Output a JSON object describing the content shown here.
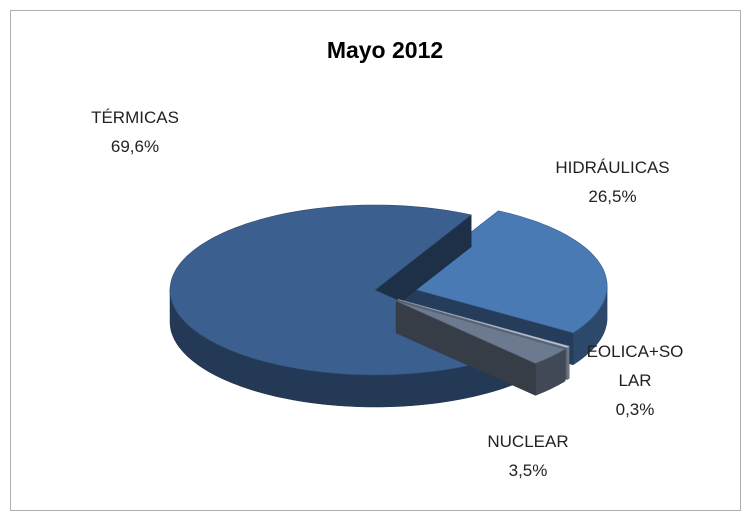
{
  "chart_data": {
    "type": "pie",
    "title": "Mayo 2012",
    "categories": [
      "HIDRÁULICAS",
      "EOLICA+SOLAR",
      "NUCLEAR",
      "TÉRMICAS"
    ],
    "values": [
      26.5,
      0.3,
      3.5,
      69.6
    ],
    "value_labels": [
      "26,5%",
      "0,3%",
      "3,5%",
      "69,6%"
    ],
    "colors": [
      "#4a7ab4",
      "#b8c8e2",
      "#6b7a8e",
      "#3b5f8f"
    ]
  }
}
